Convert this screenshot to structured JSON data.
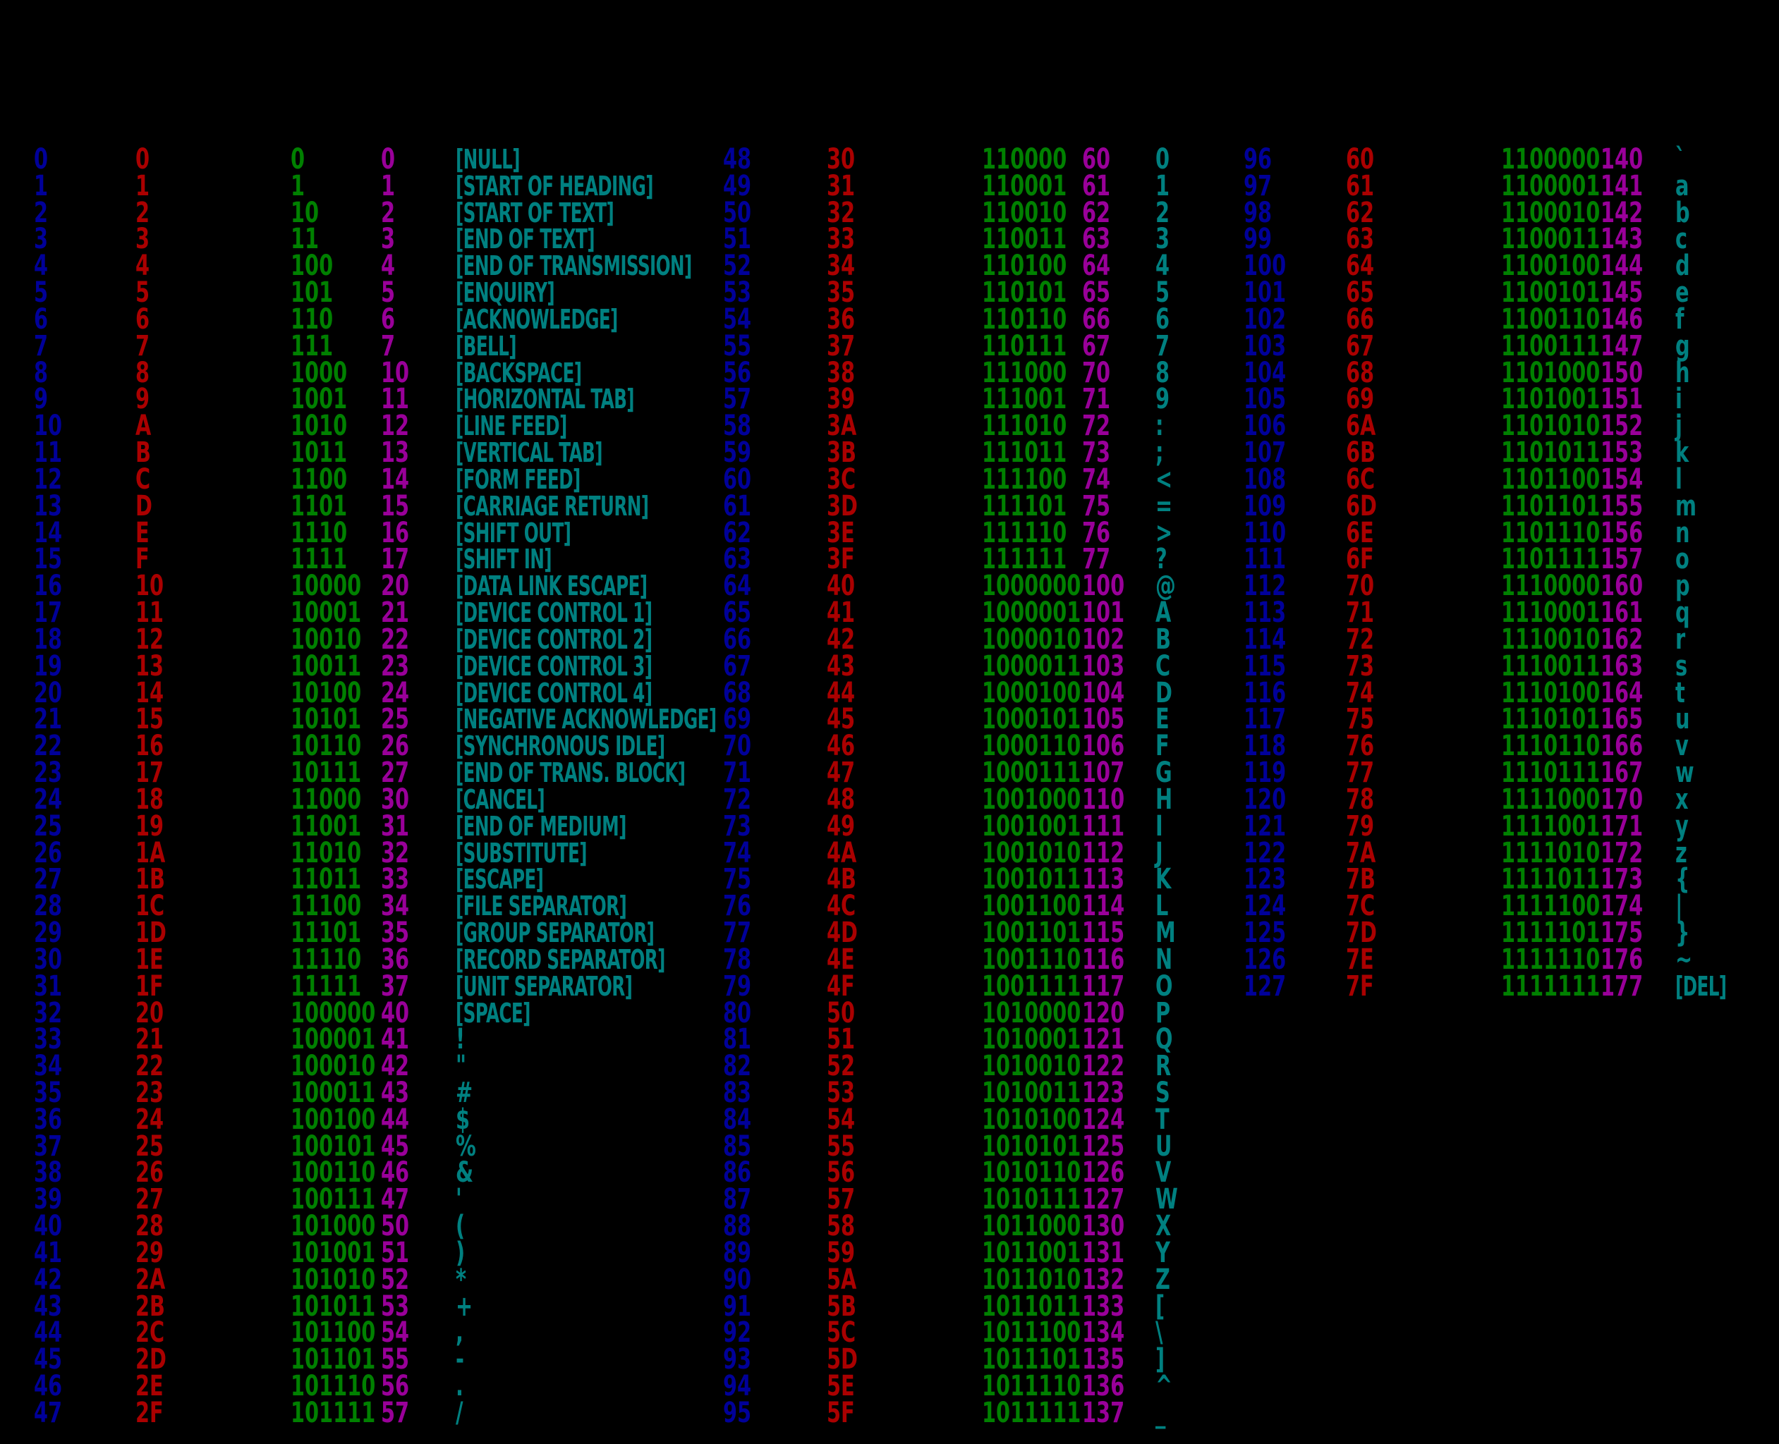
{
  "page": {
    "background": "#000000",
    "description": "ASCII code reference table, three column groups on black background"
  },
  "colors": {
    "decimal": "#000099",
    "hexadecimal": "#AA0000",
    "binary": "#008000",
    "octal": "#990099",
    "char": "#008080"
  },
  "chart_data": {
    "type": "table",
    "columns": [
      {
        "key": "decimal",
        "cls": "c-dec",
        "name": "decimal-cell",
        "color": "#000099"
      },
      {
        "key": "hexadecimal",
        "cls": "c-hex",
        "name": "hex-cell",
        "color": "#AA0000"
      },
      {
        "key": "binary",
        "cls": "c-bin",
        "name": "binary-cell",
        "color": "#008000"
      },
      {
        "key": "octal",
        "cls": "c-oct",
        "name": "octal-cell",
        "color": "#990099"
      },
      {
        "key": "char",
        "cls": "c-chr",
        "name": "char-cell",
        "color": "#008080"
      }
    ],
    "groups": [
      {
        "name": "codes-0-47",
        "rows": [
          [
            "0",
            "0",
            "0",
            "0",
            "[NULL]"
          ],
          [
            "1",
            "1",
            "1",
            "1",
            "[START OF HEADING]"
          ],
          [
            "2",
            "2",
            "10",
            "2",
            "[START OF TEXT]"
          ],
          [
            "3",
            "3",
            "11",
            "3",
            "[END OF TEXT]"
          ],
          [
            "4",
            "4",
            "100",
            "4",
            "[END OF TRANSMISSION]"
          ],
          [
            "5",
            "5",
            "101",
            "5",
            "[ENQUIRY]"
          ],
          [
            "6",
            "6",
            "110",
            "6",
            "[ACKNOWLEDGE]"
          ],
          [
            "7",
            "7",
            "111",
            "7",
            "[BELL]"
          ],
          [
            "8",
            "8",
            "1000",
            "10",
            "[BACKSPACE]"
          ],
          [
            "9",
            "9",
            "1001",
            "11",
            "[HORIZONTAL TAB]"
          ],
          [
            "10",
            "A",
            "1010",
            "12",
            "[LINE FEED]"
          ],
          [
            "11",
            "B",
            "1011",
            "13",
            "[VERTICAL TAB]"
          ],
          [
            "12",
            "C",
            "1100",
            "14",
            "[FORM FEED]"
          ],
          [
            "13",
            "D",
            "1101",
            "15",
            "[CARRIAGE RETURN]"
          ],
          [
            "14",
            "E",
            "1110",
            "16",
            "[SHIFT OUT]"
          ],
          [
            "15",
            "F",
            "1111",
            "17",
            "[SHIFT IN]"
          ],
          [
            "16",
            "10",
            "10000",
            "20",
            "[DATA LINK ESCAPE]"
          ],
          [
            "17",
            "11",
            "10001",
            "21",
            "[DEVICE CONTROL 1]"
          ],
          [
            "18",
            "12",
            "10010",
            "22",
            "[DEVICE CONTROL 2]"
          ],
          [
            "19",
            "13",
            "10011",
            "23",
            "[DEVICE CONTROL 3]"
          ],
          [
            "20",
            "14",
            "10100",
            "24",
            "[DEVICE CONTROL 4]"
          ],
          [
            "21",
            "15",
            "10101",
            "25",
            "[NEGATIVE ACKNOWLEDGE]"
          ],
          [
            "22",
            "16",
            "10110",
            "26",
            "[SYNCHRONOUS IDLE]"
          ],
          [
            "23",
            "17",
            "10111",
            "27",
            "[END OF TRANS. BLOCK]"
          ],
          [
            "24",
            "18",
            "11000",
            "30",
            "[CANCEL]"
          ],
          [
            "25",
            "19",
            "11001",
            "31",
            "[END OF MEDIUM]"
          ],
          [
            "26",
            "1A",
            "11010",
            "32",
            "[SUBSTITUTE]"
          ],
          [
            "27",
            "1B",
            "11011",
            "33",
            "[ESCAPE]"
          ],
          [
            "28",
            "1C",
            "11100",
            "34",
            "[FILE SEPARATOR]"
          ],
          [
            "29",
            "1D",
            "11101",
            "35",
            "[GROUP SEPARATOR]"
          ],
          [
            "30",
            "1E",
            "11110",
            "36",
            "[RECORD SEPARATOR]"
          ],
          [
            "31",
            "1F",
            "11111",
            "37",
            "[UNIT SEPARATOR]"
          ],
          [
            "32",
            "20",
            "100000",
            "40",
            "[SPACE]"
          ],
          [
            "33",
            "21",
            "100001",
            "41",
            "!"
          ],
          [
            "34",
            "22",
            "100010",
            "42",
            "\""
          ],
          [
            "35",
            "23",
            "100011",
            "43",
            "#"
          ],
          [
            "36",
            "24",
            "100100",
            "44",
            "$"
          ],
          [
            "37",
            "25",
            "100101",
            "45",
            "%"
          ],
          [
            "38",
            "26",
            "100110",
            "46",
            "&"
          ],
          [
            "39",
            "27",
            "100111",
            "47",
            "'"
          ],
          [
            "40",
            "28",
            "101000",
            "50",
            "("
          ],
          [
            "41",
            "29",
            "101001",
            "51",
            ")"
          ],
          [
            "42",
            "2A",
            "101010",
            "52",
            "*"
          ],
          [
            "43",
            "2B",
            "101011",
            "53",
            "+"
          ],
          [
            "44",
            "2C",
            "101100",
            "54",
            ","
          ],
          [
            "45",
            "2D",
            "101101",
            "55",
            "-"
          ],
          [
            "46",
            "2E",
            "101110",
            "56",
            "."
          ],
          [
            "47",
            "2F",
            "101111",
            "57",
            "/"
          ]
        ]
      },
      {
        "name": "codes-48-95",
        "rows": [
          [
            "48",
            "30",
            "110000",
            "60",
            "0"
          ],
          [
            "49",
            "31",
            "110001",
            "61",
            "1"
          ],
          [
            "50",
            "32",
            "110010",
            "62",
            "2"
          ],
          [
            "51",
            "33",
            "110011",
            "63",
            "3"
          ],
          [
            "52",
            "34",
            "110100",
            "64",
            "4"
          ],
          [
            "53",
            "35",
            "110101",
            "65",
            "5"
          ],
          [
            "54",
            "36",
            "110110",
            "66",
            "6"
          ],
          [
            "55",
            "37",
            "110111",
            "67",
            "7"
          ],
          [
            "56",
            "38",
            "111000",
            "70",
            "8"
          ],
          [
            "57",
            "39",
            "111001",
            "71",
            "9"
          ],
          [
            "58",
            "3A",
            "111010",
            "72",
            ":"
          ],
          [
            "59",
            "3B",
            "111011",
            "73",
            ";"
          ],
          [
            "60",
            "3C",
            "111100",
            "74",
            "<"
          ],
          [
            "61",
            "3D",
            "111101",
            "75",
            "="
          ],
          [
            "62",
            "3E",
            "111110",
            "76",
            ">"
          ],
          [
            "63",
            "3F",
            "111111",
            "77",
            "?"
          ],
          [
            "64",
            "40",
            "1000000",
            "100",
            "@"
          ],
          [
            "65",
            "41",
            "1000001",
            "101",
            "A"
          ],
          [
            "66",
            "42",
            "1000010",
            "102",
            "B"
          ],
          [
            "67",
            "43",
            "1000011",
            "103",
            "C"
          ],
          [
            "68",
            "44",
            "1000100",
            "104",
            "D"
          ],
          [
            "69",
            "45",
            "1000101",
            "105",
            "E"
          ],
          [
            "70",
            "46",
            "1000110",
            "106",
            "F"
          ],
          [
            "71",
            "47",
            "1000111",
            "107",
            "G"
          ],
          [
            "72",
            "48",
            "1001000",
            "110",
            "H"
          ],
          [
            "73",
            "49",
            "1001001",
            "111",
            "I"
          ],
          [
            "74",
            "4A",
            "1001010",
            "112",
            "J"
          ],
          [
            "75",
            "4B",
            "1001011",
            "113",
            "K"
          ],
          [
            "76",
            "4C",
            "1001100",
            "114",
            "L"
          ],
          [
            "77",
            "4D",
            "1001101",
            "115",
            "M"
          ],
          [
            "78",
            "4E",
            "1001110",
            "116",
            "N"
          ],
          [
            "79",
            "4F",
            "1001111",
            "117",
            "O"
          ],
          [
            "80",
            "50",
            "1010000",
            "120",
            "P"
          ],
          [
            "81",
            "51",
            "1010001",
            "121",
            "Q"
          ],
          [
            "82",
            "52",
            "1010010",
            "122",
            "R"
          ],
          [
            "83",
            "53",
            "1010011",
            "123",
            "S"
          ],
          [
            "84",
            "54",
            "1010100",
            "124",
            "T"
          ],
          [
            "85",
            "55",
            "1010101",
            "125",
            "U"
          ],
          [
            "86",
            "56",
            "1010110",
            "126",
            "V"
          ],
          [
            "87",
            "57",
            "1010111",
            "127",
            "W"
          ],
          [
            "88",
            "58",
            "1011000",
            "130",
            "X"
          ],
          [
            "89",
            "59",
            "1011001",
            "131",
            "Y"
          ],
          [
            "90",
            "5A",
            "1011010",
            "132",
            "Z"
          ],
          [
            "91",
            "5B",
            "1011011",
            "133",
            "["
          ],
          [
            "92",
            "5C",
            "1011100",
            "134",
            "\\"
          ],
          [
            "93",
            "5D",
            "1011101",
            "135",
            "]"
          ],
          [
            "94",
            "5E",
            "1011110",
            "136",
            "^"
          ],
          [
            "95",
            "5F",
            "1011111",
            "137",
            "_"
          ]
        ]
      },
      {
        "name": "codes-96-127",
        "rows": [
          [
            "96",
            "60",
            "1100000",
            "140",
            "`"
          ],
          [
            "97",
            "61",
            "1100001",
            "141",
            "a"
          ],
          [
            "98",
            "62",
            "1100010",
            "142",
            "b"
          ],
          [
            "99",
            "63",
            "1100011",
            "143",
            "c"
          ],
          [
            "100",
            "64",
            "1100100",
            "144",
            "d"
          ],
          [
            "101",
            "65",
            "1100101",
            "145",
            "e"
          ],
          [
            "102",
            "66",
            "1100110",
            "146",
            "f"
          ],
          [
            "103",
            "67",
            "1100111",
            "147",
            "g"
          ],
          [
            "104",
            "68",
            "1101000",
            "150",
            "h"
          ],
          [
            "105",
            "69",
            "1101001",
            "151",
            "i"
          ],
          [
            "106",
            "6A",
            "1101010",
            "152",
            "j"
          ],
          [
            "107",
            "6B",
            "1101011",
            "153",
            "k"
          ],
          [
            "108",
            "6C",
            "1101100",
            "154",
            "l"
          ],
          [
            "109",
            "6D",
            "1101101",
            "155",
            "m"
          ],
          [
            "110",
            "6E",
            "1101110",
            "156",
            "n"
          ],
          [
            "111",
            "6F",
            "1101111",
            "157",
            "o"
          ],
          [
            "112",
            "70",
            "1110000",
            "160",
            "p"
          ],
          [
            "113",
            "71",
            "1110001",
            "161",
            "q"
          ],
          [
            "114",
            "72",
            "1110010",
            "162",
            "r"
          ],
          [
            "115",
            "73",
            "1110011",
            "163",
            "s"
          ],
          [
            "116",
            "74",
            "1110100",
            "164",
            "t"
          ],
          [
            "117",
            "75",
            "1110101",
            "165",
            "u"
          ],
          [
            "118",
            "76",
            "1110110",
            "166",
            "v"
          ],
          [
            "119",
            "77",
            "1110111",
            "167",
            "w"
          ],
          [
            "120",
            "78",
            "1111000",
            "170",
            "x"
          ],
          [
            "121",
            "79",
            "1111001",
            "171",
            "y"
          ],
          [
            "122",
            "7A",
            "1111010",
            "172",
            "z"
          ],
          [
            "123",
            "7B",
            "1111011",
            "173",
            "{"
          ],
          [
            "124",
            "7C",
            "1111100",
            "174",
            "|"
          ],
          [
            "125",
            "7D",
            "1111101",
            "175",
            "}"
          ],
          [
            "126",
            "7E",
            "1111110",
            "176",
            "~"
          ],
          [
            "127",
            "7F",
            "1111111",
            "177",
            "[DEL]"
          ]
        ]
      }
    ]
  }
}
